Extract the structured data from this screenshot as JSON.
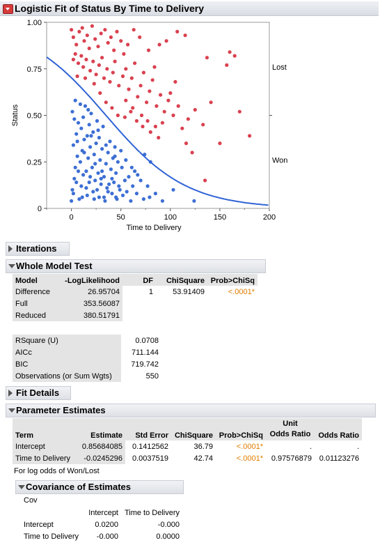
{
  "report": {
    "title": "Logistic Fit of Status By Time to Delivery"
  },
  "chart_data": {
    "type": "scatter",
    "xlabel": "Time to Delivery",
    "ylabel": "Status",
    "xlim": [
      -25,
      200
    ],
    "ylim": [
      0,
      1
    ],
    "x_ticks": [
      "0",
      "50",
      "100",
      "150",
      "200"
    ],
    "y_ticks": [
      "0",
      "0.25",
      "0.50",
      "0.75",
      "1.00"
    ],
    "y_tick_values": [
      0,
      0.25,
      0.5,
      0.75,
      1.0
    ],
    "x_tick_values": [
      0,
      50,
      100,
      150,
      200
    ],
    "right_labels": [
      {
        "text": "Lost",
        "y": 0.76
      },
      {
        "text": "Won",
        "y": 0.26
      }
    ],
    "curve": {
      "intercept": 0.85684085,
      "slope": -0.0245296,
      "color": "#2f63d6"
    },
    "series": [
      {
        "name": "Lost",
        "color": "#d9414f",
        "points": [
          [
            0,
            0.96
          ],
          [
            2,
            0.92
          ],
          [
            5,
            0.88
          ],
          [
            8,
            0.95
          ],
          [
            11,
            0.97
          ],
          [
            13,
            0.9
          ],
          [
            16,
            0.93
          ],
          [
            18,
            0.86
          ],
          [
            21,
            0.98
          ],
          [
            24,
            0.91
          ],
          [
            27,
            0.87
          ],
          [
            30,
            0.94
          ],
          [
            34,
            0.96
          ],
          [
            37,
            0.89
          ],
          [
            40,
            0.92
          ],
          [
            43,
            0.85
          ],
          [
            46,
            0.95
          ],
          [
            50,
            0.9
          ],
          [
            53,
            0.83
          ],
          [
            57,
            0.88
          ],
          [
            2,
            0.8
          ],
          [
            4,
            0.83
          ],
          [
            7,
            0.78
          ],
          [
            10,
            0.82
          ],
          [
            12,
            0.76
          ],
          [
            15,
            0.8
          ],
          [
            19,
            0.74
          ],
          [
            22,
            0.79
          ],
          [
            25,
            0.72
          ],
          [
            28,
            0.77
          ],
          [
            31,
            0.81
          ],
          [
            33,
            0.7
          ],
          [
            36,
            0.75
          ],
          [
            39,
            0.68
          ],
          [
            42,
            0.73
          ],
          [
            44,
            0.79
          ],
          [
            48,
            0.66
          ],
          [
            52,
            0.71
          ],
          [
            55,
            0.75
          ],
          [
            58,
            0.64
          ],
          [
            61,
            0.7
          ],
          [
            64,
            0.78
          ],
          [
            67,
            0.6
          ],
          [
            70,
            0.66
          ],
          [
            73,
            0.73
          ],
          [
            76,
            0.57
          ],
          [
            79,
            0.63
          ],
          [
            82,
            0.69
          ],
          [
            86,
            0.55
          ],
          [
            90,
            0.61
          ],
          [
            94,
            0.52
          ],
          [
            98,
            0.58
          ],
          [
            103,
            0.5
          ],
          [
            108,
            0.55
          ],
          [
            112,
            0.43
          ],
          [
            118,
            0.48
          ],
          [
            125,
            0.53
          ],
          [
            133,
            0.45
          ],
          [
            137,
            0.81
          ],
          [
            141,
            0.57
          ],
          [
            150,
            0.35
          ],
          [
            157,
            0.77
          ],
          [
            160,
            0.84
          ],
          [
            165,
            0.82
          ],
          [
            170,
            0.52
          ],
          [
            180,
            0.39
          ],
          [
            107,
            0.95
          ],
          [
            115,
            0.93
          ],
          [
            89,
            0.88
          ],
          [
            96,
            0.9
          ],
          [
            84,
            0.76
          ],
          [
            78,
            0.85
          ],
          [
            69,
            0.92
          ],
          [
            63,
            0.96
          ],
          [
            55,
            0.58
          ],
          [
            60,
            0.52
          ],
          [
            66,
            0.47
          ],
          [
            72,
            0.44
          ],
          [
            80,
            0.41
          ],
          [
            88,
            0.38
          ],
          [
            92,
            0.46
          ],
          [
            100,
            0.62
          ],
          [
            105,
            0.68
          ],
          [
            135,
            0.15
          ],
          [
            122,
            0.3
          ],
          [
            116,
            0.35
          ],
          [
            6,
            0.71
          ],
          [
            14,
            0.7
          ],
          [
            23,
            0.67
          ],
          [
            29,
            0.62
          ],
          [
            35,
            0.57
          ],
          [
            41,
            0.54
          ],
          [
            47,
            0.5
          ],
          [
            54,
            0.49
          ],
          [
            62,
            0.54
          ],
          [
            71,
            0.5
          ],
          [
            77,
            0.47
          ],
          [
            85,
            0.44
          ]
        ]
      },
      {
        "name": "Won",
        "color": "#3d6fd4",
        "points": [
          [
            0,
            0.04
          ],
          [
            1,
            0.1
          ],
          [
            3,
            0.16
          ],
          [
            4,
            0.22
          ],
          [
            6,
            0.28
          ],
          [
            2,
            0.34
          ],
          [
            5,
            0.4
          ],
          [
            7,
            0.46
          ],
          [
            1,
            0.52
          ],
          [
            4,
            0.58
          ],
          [
            8,
            0.05
          ],
          [
            10,
            0.12
          ],
          [
            12,
            0.18
          ],
          [
            9,
            0.25
          ],
          [
            11,
            0.31
          ],
          [
            13,
            0.37
          ],
          [
            10,
            0.43
          ],
          [
            12,
            0.49
          ],
          [
            14,
            0.55
          ],
          [
            16,
            0.07
          ],
          [
            18,
            0.14
          ],
          [
            15,
            0.2
          ],
          [
            17,
            0.27
          ],
          [
            19,
            0.33
          ],
          [
            16,
            0.39
          ],
          [
            18,
            0.45
          ],
          [
            20,
            0.51
          ],
          [
            22,
            0.09
          ],
          [
            24,
            0.15
          ],
          [
            21,
            0.22
          ],
          [
            23,
            0.29
          ],
          [
            25,
            0.35
          ],
          [
            22,
            0.41
          ],
          [
            26,
            0.47
          ],
          [
            28,
            0.06
          ],
          [
            30,
            0.13
          ],
          [
            27,
            0.19
          ],
          [
            29,
            0.26
          ],
          [
            31,
            0.32
          ],
          [
            28,
            0.38
          ],
          [
            32,
            0.44
          ],
          [
            34,
            0.04
          ],
          [
            36,
            0.11
          ],
          [
            33,
            0.17
          ],
          [
            35,
            0.24
          ],
          [
            37,
            0.3
          ],
          [
            39,
            0.36
          ],
          [
            41,
            0.08
          ],
          [
            43,
            0.14
          ],
          [
            40,
            0.21
          ],
          [
            42,
            0.27
          ],
          [
            44,
            0.33
          ],
          [
            46,
            0.05
          ],
          [
            48,
            0.12
          ],
          [
            45,
            0.19
          ],
          [
            47,
            0.25
          ],
          [
            50,
            0.31
          ],
          [
            52,
            0.07
          ],
          [
            54,
            0.15
          ],
          [
            51,
            0.22
          ],
          [
            56,
            0.09
          ],
          [
            58,
            0.17
          ],
          [
            60,
            0.04
          ],
          [
            62,
            0.12
          ],
          [
            64,
            0.2
          ],
          [
            66,
            0.08
          ],
          [
            70,
            0.15
          ],
          [
            73,
            0.05
          ],
          [
            77,
            0.12
          ],
          [
            80,
            0.25
          ],
          [
            85,
            0.08
          ],
          [
            92,
            0.04
          ],
          [
            103,
            0.1
          ],
          [
            124,
            0.04
          ],
          [
            3,
            0.48
          ],
          [
            6,
            0.36
          ],
          [
            9,
            0.56
          ],
          [
            13,
            0.3
          ],
          [
            17,
            0.53
          ],
          [
            20,
            0.39
          ],
          [
            24,
            0.24
          ],
          [
            27,
            0.42
          ],
          [
            31,
            0.2
          ],
          [
            35,
            0.34
          ],
          [
            38,
            0.13
          ],
          [
            44,
            0.28
          ],
          [
            49,
            0.1
          ],
          [
            55,
            0.26
          ],
          [
            61,
            0.22
          ],
          [
            67,
            0.18
          ],
          [
            74,
            0.29
          ],
          [
            79,
            0.06
          ],
          [
            2,
            0.08
          ],
          [
            5,
            0.14
          ],
          [
            7,
            0.2
          ],
          [
            11,
            0.06
          ],
          [
            15,
            0.11
          ],
          [
            19,
            0.17
          ],
          [
            23,
            0.05
          ],
          [
            26,
            0.1
          ],
          [
            30,
            0.16
          ],
          [
            33,
            0.06
          ],
          [
            37,
            0.09
          ],
          [
            41,
            0.16
          ],
          [
            45,
            0.06
          ]
        ]
      }
    ]
  },
  "sections": {
    "iterations": "Iterations",
    "whole_model_test": "Whole Model Test",
    "fit_details": "Fit Details",
    "parameter_estimates": "Parameter Estimates",
    "covariance": "Covariance of Estimates"
  },
  "whole_model": {
    "headers": [
      "Model",
      "-LogLikelihood",
      "DF",
      "ChiSquare",
      "Prob>ChiSq"
    ],
    "rows": [
      [
        "Difference",
        "26.95704",
        "1",
        "53.91409",
        "<.0001*"
      ],
      [
        "Full",
        "353.56087",
        "",
        "",
        ""
      ],
      [
        "Reduced",
        "380.51791",
        "",
        "",
        ""
      ]
    ]
  },
  "fit_stats": [
    [
      "RSquare (U)",
      "0.0708"
    ],
    [
      "AICc",
      "711.144"
    ],
    [
      "BIC",
      "719.742"
    ],
    [
      "Observations (or Sum Wgts)",
      "550"
    ]
  ],
  "parameters": {
    "headers": [
      "Term",
      "Estimate",
      "Std Error",
      "ChiSquare",
      "Prob>ChiSq",
      "Unit\nOdds Ratio",
      "Odds Ratio"
    ],
    "rows": [
      [
        "Intercept",
        "0.85684085",
        "0.1412562",
        "36.79",
        "<.0001*",
        ".",
        "."
      ],
      [
        "Time to Delivery",
        "-0.0245296",
        "0.0037519",
        "42.74",
        "<.0001*",
        "0.97576879",
        "0.01123276"
      ]
    ],
    "note": "For log odds of Won/Lost"
  },
  "covariance": {
    "label": "Cov",
    "headers": [
      "",
      "Intercept",
      "Time to Delivery"
    ],
    "rows": [
      [
        "Intercept",
        "0.0200",
        "-0.000"
      ],
      [
        "Time to Delivery",
        "-0.000",
        "0.0000"
      ]
    ]
  }
}
